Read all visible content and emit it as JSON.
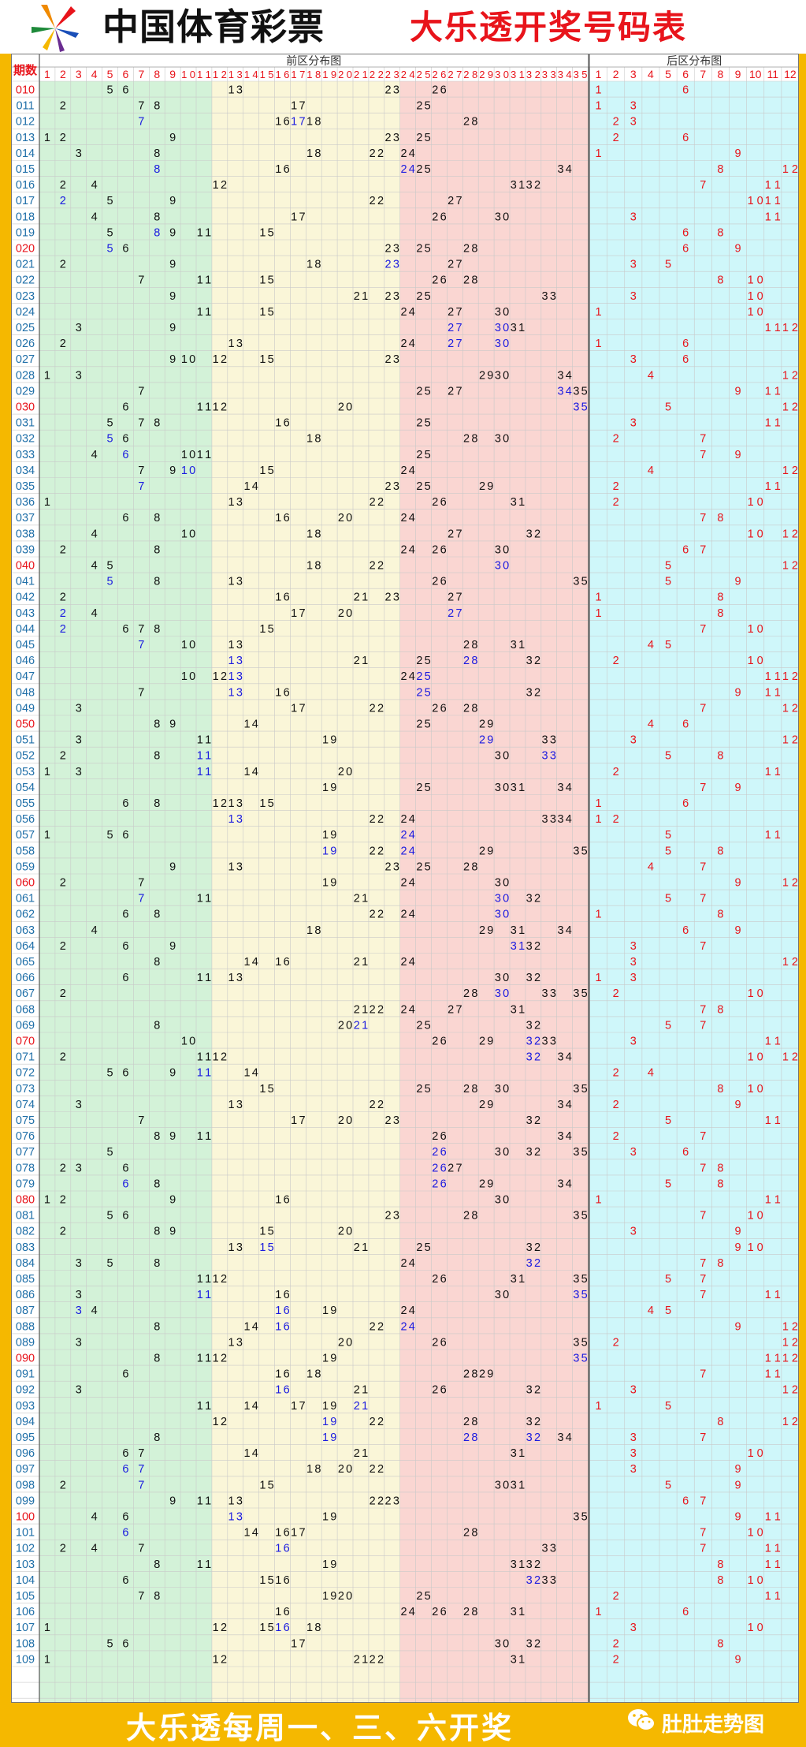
{
  "header": {
    "lottery_name": "中国体育彩票",
    "table_title": "大乐透开奖号码表"
  },
  "chart_data": {
    "type": "table",
    "period_header": "期数",
    "front_zone_title": "前区分布图",
    "back_zone_title": "后区分布图",
    "front_numbers": [
      1,
      2,
      3,
      4,
      5,
      6,
      7,
      8,
      9,
      10,
      11,
      12,
      13,
      14,
      15,
      16,
      17,
      18,
      19,
      20,
      21,
      22,
      23,
      24,
      25,
      26,
      27,
      28,
      29,
      30,
      31,
      32,
      33,
      34,
      35
    ],
    "back_numbers": [
      1,
      2,
      3,
      4,
      5,
      6,
      7,
      8,
      9,
      10,
      11,
      12
    ],
    "rows": [
      {
        "p": "010",
        "f": [
          5,
          6,
          13,
          23,
          26
        ],
        "b": [
          1,
          6
        ]
      },
      {
        "p": "011",
        "f": [
          2,
          7,
          8,
          17,
          25
        ],
        "b": [
          1,
          3
        ]
      },
      {
        "p": "012",
        "f": [
          7,
          16,
          17,
          18,
          28
        ],
        "b": [
          2,
          3
        ]
      },
      {
        "p": "013",
        "f": [
          1,
          2,
          9,
          23,
          25
        ],
        "b": [
          2,
          6
        ]
      },
      {
        "p": "014",
        "f": [
          3,
          8,
          18,
          22,
          24
        ],
        "b": [
          1,
          9
        ]
      },
      {
        "p": "015",
        "f": [
          8,
          16,
          24,
          25,
          34
        ],
        "b": [
          8,
          12
        ]
      },
      {
        "p": "016",
        "f": [
          2,
          4,
          12,
          31,
          32
        ],
        "b": [
          7,
          11
        ]
      },
      {
        "p": "017",
        "f": [
          2,
          5,
          9,
          22,
          27
        ],
        "b": [
          10,
          11
        ]
      },
      {
        "p": "018",
        "f": [
          4,
          8,
          17,
          26,
          30
        ],
        "b": [
          3,
          11
        ]
      },
      {
        "p": "019",
        "f": [
          5,
          8,
          9,
          11,
          15
        ],
        "b": [
          6,
          8
        ]
      },
      {
        "p": "020",
        "f": [
          5,
          6,
          23,
          25,
          28
        ],
        "b": [
          6,
          9
        ]
      },
      {
        "p": "021",
        "f": [
          2,
          9,
          18,
          23,
          27
        ],
        "b": [
          3,
          5
        ]
      },
      {
        "p": "022",
        "f": [
          7,
          11,
          15,
          26,
          28
        ],
        "b": [
          8,
          10
        ]
      },
      {
        "p": "023",
        "f": [
          9,
          21,
          23,
          25,
          33
        ],
        "b": [
          3,
          10
        ]
      },
      {
        "p": "024",
        "f": [
          11,
          15,
          24,
          27,
          30
        ],
        "b": [
          1,
          10
        ]
      },
      {
        "p": "025",
        "f": [
          3,
          9,
          27,
          30,
          31
        ],
        "b": [
          11,
          12
        ]
      },
      {
        "p": "026",
        "f": [
          2,
          13,
          24,
          27,
          30
        ],
        "b": [
          1,
          6
        ]
      },
      {
        "p": "027",
        "f": [
          9,
          10,
          12,
          15,
          23
        ],
        "b": [
          3,
          6
        ]
      },
      {
        "p": "028",
        "f": [
          1,
          3,
          29,
          30,
          34
        ],
        "b": [
          4,
          12
        ]
      },
      {
        "p": "029",
        "f": [
          7,
          25,
          27,
          34,
          35
        ],
        "b": [
          9,
          11
        ]
      },
      {
        "p": "030",
        "f": [
          6,
          11,
          12,
          20,
          35
        ],
        "b": [
          5,
          12
        ]
      },
      {
        "p": "031",
        "f": [
          5,
          7,
          8,
          16,
          25
        ],
        "b": [
          3,
          11
        ]
      },
      {
        "p": "032",
        "f": [
          5,
          6,
          18,
          28,
          30
        ],
        "b": [
          2,
          7
        ]
      },
      {
        "p": "033",
        "f": [
          4,
          6,
          10,
          11,
          25
        ],
        "b": [
          7,
          9
        ]
      },
      {
        "p": "034",
        "f": [
          7,
          9,
          10,
          15,
          24
        ],
        "b": [
          4,
          12
        ]
      },
      {
        "p": "035",
        "f": [
          7,
          14,
          23,
          25,
          29
        ],
        "b": [
          2,
          11
        ]
      },
      {
        "p": "036",
        "f": [
          1,
          13,
          22,
          26,
          31
        ],
        "b": [
          2,
          10
        ]
      },
      {
        "p": "037",
        "f": [
          6,
          8,
          16,
          20,
          24
        ],
        "b": [
          7,
          8
        ]
      },
      {
        "p": "038",
        "f": [
          4,
          10,
          18,
          27,
          32
        ],
        "b": [
          10,
          12
        ]
      },
      {
        "p": "039",
        "f": [
          2,
          8,
          24,
          26,
          30
        ],
        "b": [
          6,
          7
        ]
      },
      {
        "p": "040",
        "f": [
          4,
          5,
          18,
          22,
          30
        ],
        "b": [
          5,
          12
        ]
      },
      {
        "p": "041",
        "f": [
          5,
          8,
          13,
          26,
          35
        ],
        "b": [
          5,
          9
        ]
      },
      {
        "p": "042",
        "f": [
          2,
          16,
          21,
          23,
          27
        ],
        "b": [
          1,
          8
        ]
      },
      {
        "p": "043",
        "f": [
          2,
          4,
          17,
          20,
          27
        ],
        "b": [
          1,
          8
        ]
      },
      {
        "p": "044",
        "f": [
          2,
          6,
          7,
          8,
          15
        ],
        "b": [
          7,
          10
        ]
      },
      {
        "p": "045",
        "f": [
          7,
          10,
          13,
          28,
          31
        ],
        "b": [
          4,
          5
        ]
      },
      {
        "p": "046",
        "f": [
          13,
          21,
          25,
          28,
          32
        ],
        "b": [
          2,
          10
        ]
      },
      {
        "p": "047",
        "f": [
          10,
          12,
          13,
          24,
          25
        ],
        "b": [
          11,
          12
        ]
      },
      {
        "p": "048",
        "f": [
          7,
          13,
          16,
          25,
          32
        ],
        "b": [
          9,
          11
        ]
      },
      {
        "p": "049",
        "f": [
          3,
          17,
          22,
          26,
          28
        ],
        "b": [
          7,
          12
        ]
      },
      {
        "p": "050",
        "f": [
          8,
          9,
          14,
          25,
          29
        ],
        "b": [
          4,
          6
        ]
      },
      {
        "p": "051",
        "f": [
          3,
          11,
          19,
          29,
          33
        ],
        "b": [
          3,
          12
        ]
      },
      {
        "p": "052",
        "f": [
          2,
          8,
          11,
          30,
          33
        ],
        "b": [
          5,
          8
        ]
      },
      {
        "p": "053",
        "f": [
          1,
          3,
          11,
          14,
          20
        ],
        "b": [
          2,
          11
        ]
      },
      {
        "p": "054",
        "f": [
          19,
          25,
          30,
          31,
          34
        ],
        "b": [
          7,
          9
        ]
      },
      {
        "p": "055",
        "f": [
          6,
          8,
          12,
          13,
          15
        ],
        "b": [
          1,
          6
        ]
      },
      {
        "p": "056",
        "f": [
          13,
          22,
          24,
          33,
          34
        ],
        "b": [
          1,
          2
        ]
      },
      {
        "p": "057",
        "f": [
          1,
          5,
          6,
          19,
          24
        ],
        "b": [
          5,
          11
        ]
      },
      {
        "p": "058",
        "f": [
          19,
          22,
          24,
          29,
          35
        ],
        "b": [
          5,
          8
        ]
      },
      {
        "p": "059",
        "f": [
          9,
          13,
          23,
          25,
          28
        ],
        "b": [
          4,
          7
        ]
      },
      {
        "p": "060",
        "f": [
          2,
          7,
          19,
          24,
          30
        ],
        "b": [
          9,
          12
        ]
      },
      {
        "p": "061",
        "f": [
          7,
          11,
          21,
          30,
          32
        ],
        "b": [
          5,
          7
        ]
      },
      {
        "p": "062",
        "f": [
          6,
          8,
          22,
          24,
          30
        ],
        "b": [
          1,
          8
        ]
      },
      {
        "p": "063",
        "f": [
          4,
          18,
          29,
          31,
          34
        ],
        "b": [
          6,
          9
        ]
      },
      {
        "p": "064",
        "f": [
          2,
          6,
          9,
          31,
          32
        ],
        "b": [
          3,
          7
        ]
      },
      {
        "p": "065",
        "f": [
          8,
          14,
          16,
          21,
          24
        ],
        "b": [
          3,
          12
        ]
      },
      {
        "p": "066",
        "f": [
          6,
          11,
          13,
          30,
          32
        ],
        "b": [
          1,
          3
        ]
      },
      {
        "p": "067",
        "f": [
          2,
          28,
          30,
          33,
          35
        ],
        "b": [
          2,
          10
        ]
      },
      {
        "p": "068",
        "f": [
          21,
          22,
          24,
          27,
          31
        ],
        "b": [
          7,
          8
        ]
      },
      {
        "p": "069",
        "f": [
          8,
          20,
          21,
          25,
          32
        ],
        "b": [
          5,
          7
        ]
      },
      {
        "p": "070",
        "f": [
          10,
          26,
          29,
          32,
          33
        ],
        "b": [
          3,
          11
        ]
      },
      {
        "p": "071",
        "f": [
          2,
          11,
          12,
          32,
          34
        ],
        "b": [
          10,
          12
        ]
      },
      {
        "p": "072",
        "f": [
          5,
          6,
          9,
          11,
          14
        ],
        "b": [
          2,
          4
        ]
      },
      {
        "p": "073",
        "f": [
          15,
          25,
          28,
          30,
          35
        ],
        "b": [
          8,
          10
        ]
      },
      {
        "p": "074",
        "f": [
          3,
          13,
          22,
          29,
          34
        ],
        "b": [
          2,
          9
        ]
      },
      {
        "p": "075",
        "f": [
          7,
          17,
          20,
          23,
          32
        ],
        "b": [
          5,
          11
        ]
      },
      {
        "p": "076",
        "f": [
          8,
          9,
          11,
          26,
          34
        ],
        "b": [
          2,
          7
        ]
      },
      {
        "p": "077",
        "f": [
          5,
          26,
          30,
          32,
          35
        ],
        "b": [
          3,
          6
        ]
      },
      {
        "p": "078",
        "f": [
          2,
          3,
          6,
          26,
          27
        ],
        "b": [
          7,
          8
        ]
      },
      {
        "p": "079",
        "f": [
          6,
          8,
          26,
          29,
          34
        ],
        "b": [
          5,
          8
        ]
      },
      {
        "p": "080",
        "f": [
          1,
          2,
          9,
          16,
          30
        ],
        "b": [
          1,
          11
        ]
      },
      {
        "p": "081",
        "f": [
          5,
          6,
          23,
          28,
          35
        ],
        "b": [
          7,
          10
        ]
      },
      {
        "p": "082",
        "f": [
          2,
          8,
          9,
          15,
          20
        ],
        "b": [
          3,
          9
        ]
      },
      {
        "p": "083",
        "f": [
          13,
          15,
          21,
          25,
          32
        ],
        "b": [
          9,
          10
        ]
      },
      {
        "p": "084",
        "f": [
          3,
          5,
          8,
          24,
          32
        ],
        "b": [
          7,
          8
        ]
      },
      {
        "p": "085",
        "f": [
          11,
          12,
          26,
          31,
          35
        ],
        "b": [
          5,
          7
        ]
      },
      {
        "p": "086",
        "f": [
          3,
          11,
          16,
          30,
          35
        ],
        "b": [
          7,
          11
        ]
      },
      {
        "p": "087",
        "f": [
          3,
          4,
          16,
          19,
          24
        ],
        "b": [
          4,
          5
        ]
      },
      {
        "p": "088",
        "f": [
          8,
          14,
          16,
          22,
          24
        ],
        "b": [
          9,
          12
        ]
      },
      {
        "p": "089",
        "f": [
          3,
          13,
          20,
          26,
          35
        ],
        "b": [
          2,
          12
        ]
      },
      {
        "p": "090",
        "f": [
          8,
          11,
          12,
          19,
          35
        ],
        "b": [
          11,
          12
        ]
      },
      {
        "p": "091",
        "f": [
          6,
          16,
          18,
          28,
          29
        ],
        "b": [
          7,
          11
        ]
      },
      {
        "p": "092",
        "f": [
          3,
          16,
          21,
          26,
          32
        ],
        "b": [
          3,
          12
        ]
      },
      {
        "p": "093",
        "f": [
          11,
          14,
          17,
          19,
          21
        ],
        "b": [
          1,
          5
        ]
      },
      {
        "p": "094",
        "f": [
          12,
          19,
          22,
          28,
          32
        ],
        "b": [
          8,
          12
        ]
      },
      {
        "p": "095",
        "f": [
          8,
          19,
          28,
          32,
          34
        ],
        "b": [
          3,
          7
        ]
      },
      {
        "p": "096",
        "f": [
          6,
          7,
          14,
          21,
          31
        ],
        "b": [
          3,
          10
        ]
      },
      {
        "p": "097",
        "f": [
          6,
          7,
          18,
          20,
          22
        ],
        "b": [
          3,
          9
        ]
      },
      {
        "p": "098",
        "f": [
          2,
          7,
          15,
          30,
          31
        ],
        "b": [
          5,
          9
        ]
      },
      {
        "p": "099",
        "f": [
          9,
          11,
          13,
          22,
          23
        ],
        "b": [
          6,
          7
        ]
      },
      {
        "p": "100",
        "f": [
          4,
          6,
          13,
          19,
          35
        ],
        "b": [
          9,
          11
        ]
      },
      {
        "p": "101",
        "f": [
          6,
          14,
          16,
          17,
          28
        ],
        "b": [
          7,
          10
        ]
      },
      {
        "p": "102",
        "f": [
          2,
          4,
          7,
          16,
          33
        ],
        "b": [
          7,
          11
        ]
      },
      {
        "p": "103",
        "f": [
          8,
          11,
          19,
          31,
          32
        ],
        "b": [
          8,
          11
        ]
      },
      {
        "p": "104",
        "f": [
          6,
          15,
          16,
          32,
          33
        ],
        "b": [
          8,
          10
        ]
      },
      {
        "p": "105",
        "f": [
          7,
          8,
          19,
          20,
          25
        ],
        "b": [
          2,
          11
        ]
      },
      {
        "p": "106",
        "f": [
          16,
          24,
          26,
          28,
          31
        ],
        "b": [
          1,
          6
        ]
      },
      {
        "p": "107",
        "f": [
          1,
          12,
          15,
          16,
          18
        ],
        "b": [
          3,
          10
        ]
      },
      {
        "p": "108",
        "f": [
          5,
          6,
          17,
          30,
          32
        ],
        "b": [
          2,
          8
        ]
      },
      {
        "p": "109",
        "f": [
          1,
          12,
          21,
          22,
          31
        ],
        "b": [
          2,
          9
        ]
      }
    ]
  },
  "colors": {
    "frame": "#F5B800",
    "front_zone_1": "#D3F2D8",
    "front_zone_2": "#FAF6D8",
    "front_zone_3": "#FAD6D2",
    "back_zone": "#CFF7FA",
    "front_number": "#111111",
    "front_repeat": "#1A1AE0",
    "back_number": "#E8141B",
    "period_default": "#1F6FA8",
    "period_highlight": "#E8141B",
    "header_text": "#E8141B"
  },
  "footer": {
    "schedule": "大乐透每周一、三、六开奖",
    "brand": "肚肚走势图"
  }
}
